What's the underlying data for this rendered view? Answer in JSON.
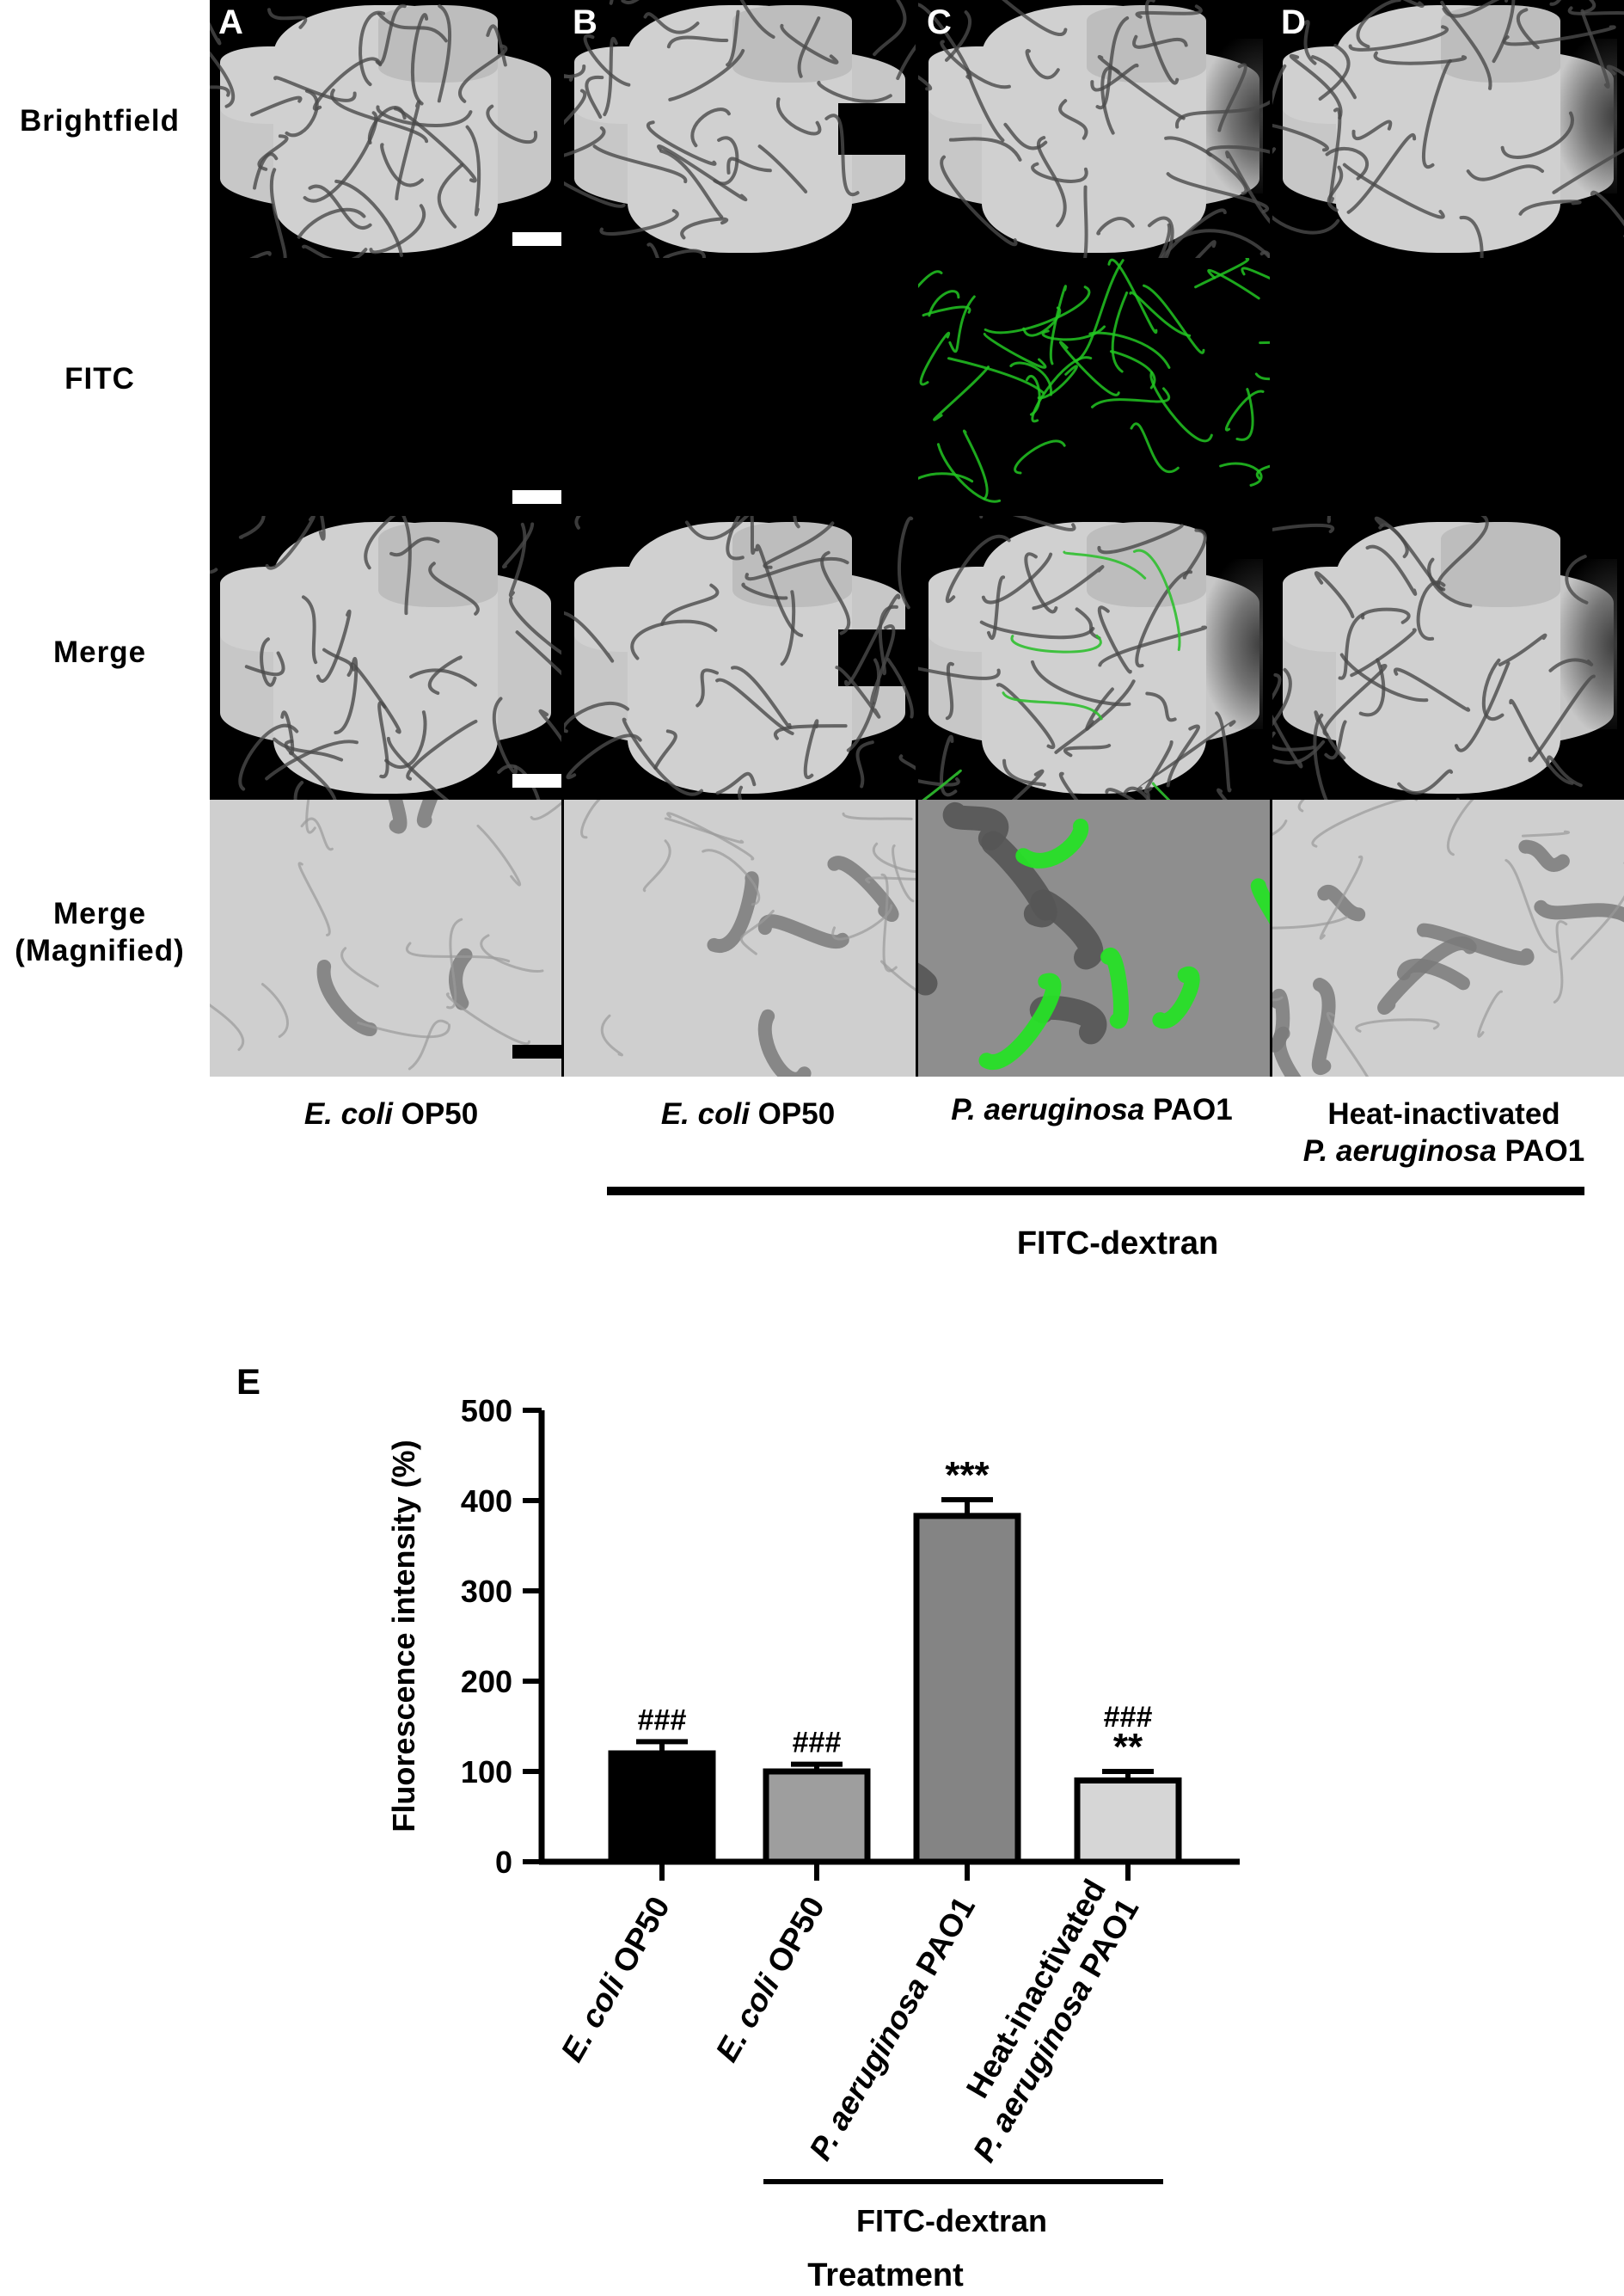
{
  "panels": {
    "letters": [
      "A",
      "B",
      "C",
      "D"
    ],
    "row_labels": [
      "Brightfield",
      "FITC",
      "Merge",
      "Merge",
      "(Magnified)"
    ],
    "columns": [
      {
        "species": "E. coli",
        "strain": "OP50",
        "prefix": ""
      },
      {
        "species": "E. coli",
        "strain": "OP50",
        "prefix": ""
      },
      {
        "species": "P. aeruginosa",
        "strain": "PAO1",
        "prefix": ""
      },
      {
        "species": "P. aeruginosa",
        "strain": "PAO1",
        "prefix": "Heat-inactivated"
      }
    ],
    "group_label": "FITC-dextran",
    "panel_E_letter": "E"
  },
  "chart_data": {
    "type": "bar",
    "categories": [
      "E. coli OP50",
      "E. coli OP50",
      "P. aeruginosa PAO1",
      "Heat-inactivated P. aeruginosa PAO1"
    ],
    "category_parts": [
      {
        "species": "E. coli",
        "strain": "OP50",
        "prefix": ""
      },
      {
        "species": "E. coli",
        "strain": "OP50",
        "prefix": ""
      },
      {
        "species": "P. aeruginosa",
        "strain": "PAO1",
        "prefix": ""
      },
      {
        "species": "P. aeruginosa",
        "strain": "PAO1",
        "prefix": "Heat-inactivated"
      }
    ],
    "values": [
      120,
      100,
      383,
      90
    ],
    "errors": [
      13,
      8,
      18,
      10
    ],
    "annotations": [
      [
        "###"
      ],
      [
        "###"
      ],
      [
        "***"
      ],
      [
        "###",
        "**"
      ]
    ],
    "ylabel": "Fluorescence intensity (%)",
    "xlabel": "Treatment",
    "ylim": [
      0,
      500
    ],
    "yticks": [
      0,
      100,
      200,
      300,
      400,
      500
    ],
    "group_label": "FITC-dextran",
    "colors": [
      "#000000",
      "#9e9e9e",
      "#848484",
      "#d6d6d6"
    ]
  }
}
